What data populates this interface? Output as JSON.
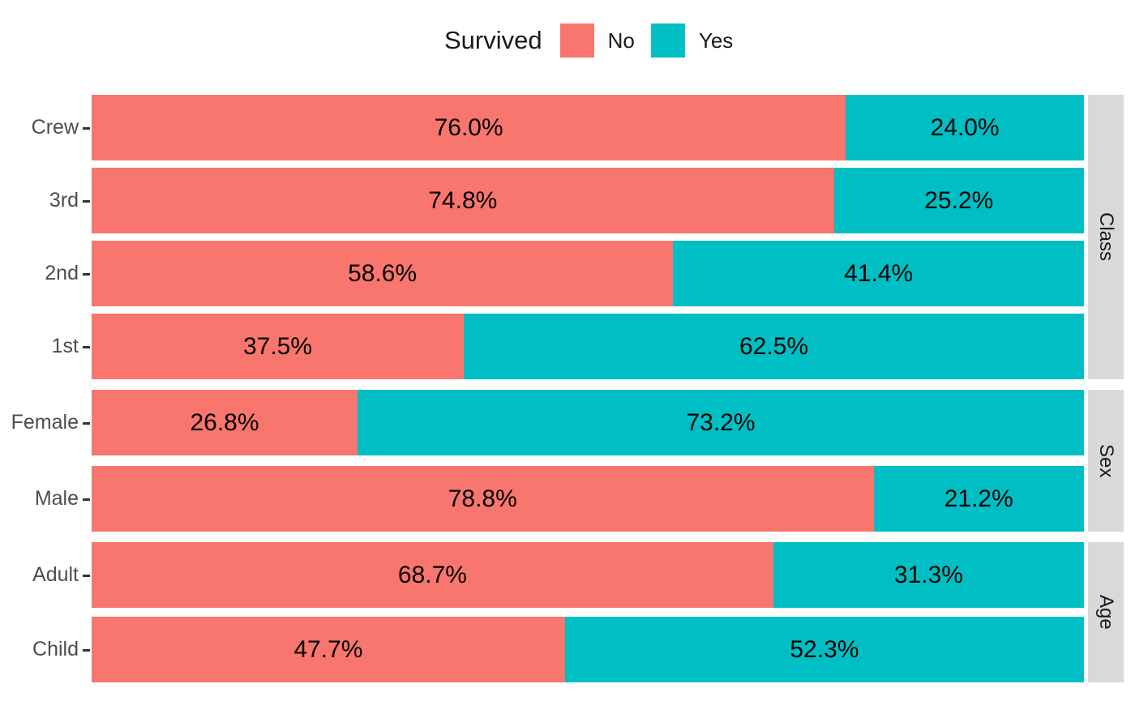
{
  "legend": {
    "title": "Survived",
    "items": [
      {
        "label": "No",
        "color": "#F8766D"
      },
      {
        "label": "Yes",
        "color": "#00BFC4"
      }
    ]
  },
  "chart_data": {
    "type": "bar",
    "subtype": "horizontal-stacked-100pct",
    "title": "",
    "legend_title": "Survived",
    "legend_position": "top",
    "xlim": [
      0,
      100
    ],
    "grid": false,
    "x_axis_visible": false,
    "series": [
      {
        "name": "No",
        "color": "#F8766D"
      },
      {
        "name": "Yes",
        "color": "#00BFC4"
      }
    ],
    "facets": [
      {
        "label": "Class",
        "rows": [
          {
            "category": "Crew",
            "no": 76.0,
            "yes": 24.0,
            "no_label": "76.0%",
            "yes_label": "24.0%"
          },
          {
            "category": "3rd",
            "no": 74.8,
            "yes": 25.2,
            "no_label": "74.8%",
            "yes_label": "25.2%"
          },
          {
            "category": "2nd",
            "no": 58.6,
            "yes": 41.4,
            "no_label": "58.6%",
            "yes_label": "41.4%"
          },
          {
            "category": "1st",
            "no": 37.5,
            "yes": 62.5,
            "no_label": "37.5%",
            "yes_label": "62.5%"
          }
        ]
      },
      {
        "label": "Sex",
        "rows": [
          {
            "category": "Female",
            "no": 26.8,
            "yes": 73.2,
            "no_label": "26.8%",
            "yes_label": "73.2%"
          },
          {
            "category": "Male",
            "no": 78.8,
            "yes": 21.2,
            "no_label": "78.8%",
            "yes_label": "21.2%"
          }
        ]
      },
      {
        "label": "Age",
        "rows": [
          {
            "category": "Adult",
            "no": 68.7,
            "yes": 31.3,
            "no_label": "68.7%",
            "yes_label": "31.3%"
          },
          {
            "category": "Child",
            "no": 47.7,
            "yes": 52.3,
            "no_label": "47.7%",
            "yes_label": "52.3%"
          }
        ]
      }
    ]
  },
  "colors": {
    "no": "#F8766D",
    "yes": "#00BFC4",
    "strip_bg": "#D9D9D9",
    "strip_text": "#1A1A1A",
    "axis_text": "#4D4D4D",
    "tick": "#333333",
    "bar_label": "#000000",
    "background": "#FFFFFF"
  }
}
